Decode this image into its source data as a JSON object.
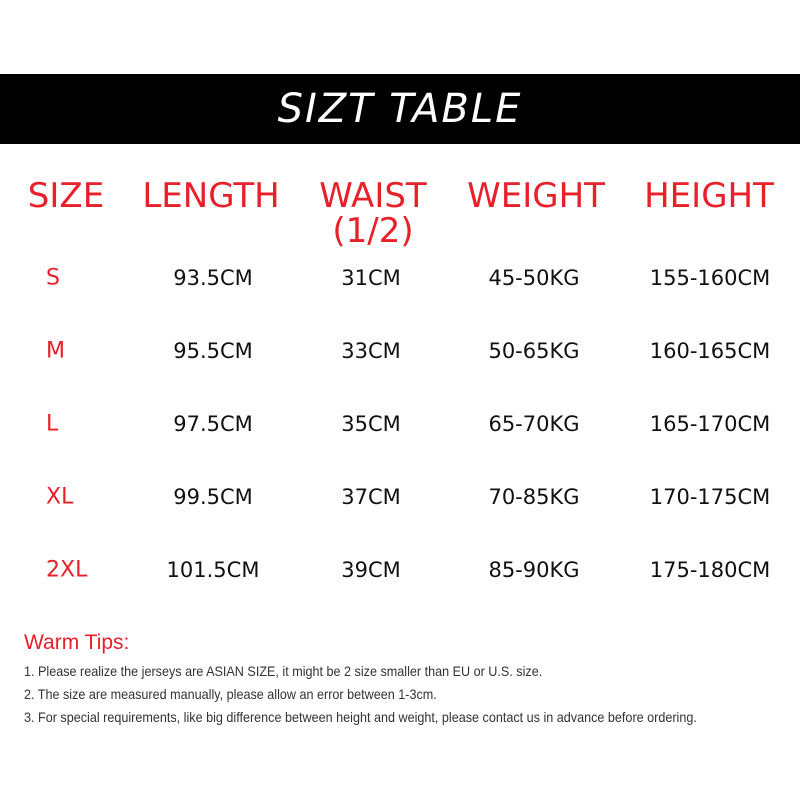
{
  "title": "SIZT TABLE",
  "headers": {
    "size": "SIZE",
    "length": "LENGTH",
    "waist": "WAIST",
    "waist_note": "(1/2)",
    "weight": "WEIGHT",
    "height": "HEIGHT"
  },
  "rows": [
    {
      "size": "S",
      "length": "93.5CM",
      "waist": "31CM",
      "weight": "45-50KG",
      "height": "155-160CM"
    },
    {
      "size": "M",
      "length": "95.5CM",
      "waist": "33CM",
      "weight": "50-65KG",
      "height": "160-165CM"
    },
    {
      "size": "L",
      "length": "97.5CM",
      "waist": "35CM",
      "weight": "65-70KG",
      "height": "165-170CM"
    },
    {
      "size": "XL",
      "length": "99.5CM",
      "waist": "37CM",
      "weight": "70-85KG",
      "height": "170-175CM"
    },
    {
      "size": "2XL",
      "length": "101.5CM",
      "waist": "39CM",
      "weight": "85-90KG",
      "height": "175-180CM"
    }
  ],
  "tips": {
    "title": "Warm Tips:",
    "items": [
      "1. Please realize the jerseys are ASIAN SIZE,  it might be 2 size smaller than EU or U.S. size.",
      "2. The size are measured manually, please allow an error between 1-3cm.",
      "3. For special requirements, like big difference between height and weight, please contact us in advance before ordering."
    ]
  },
  "colors": {
    "accent": "#e8202a",
    "banner": "#000000"
  }
}
